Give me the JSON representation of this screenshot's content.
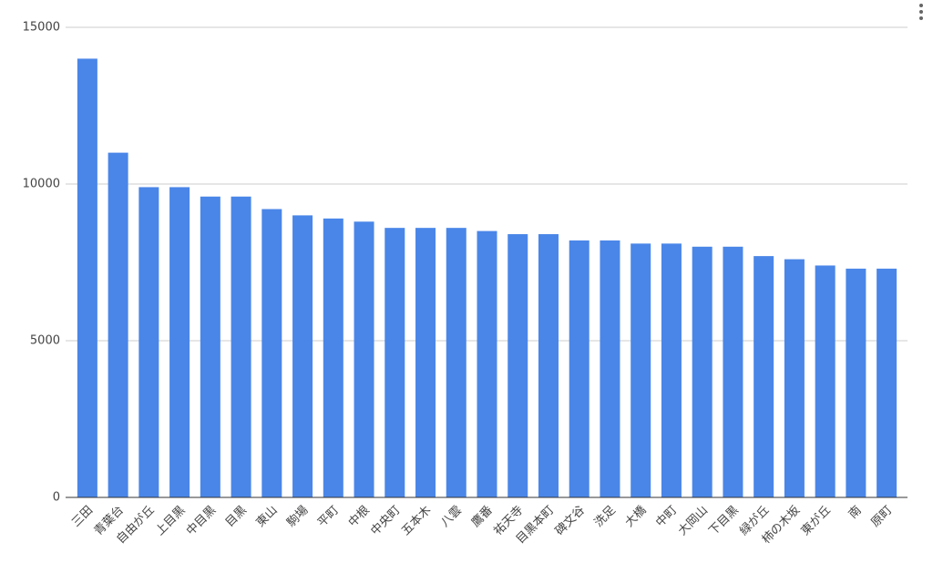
{
  "chart_data": {
    "type": "bar",
    "categories": [
      "三田",
      "青葉台",
      "自由が丘",
      "上目黒",
      "中目黒",
      "目黒",
      "東山",
      "駒場",
      "平町",
      "中根",
      "中央町",
      "五本木",
      "八雲",
      "鷹番",
      "祐天寺",
      "目黒本町",
      "碑文谷",
      "洗足",
      "大橋",
      "中町",
      "大岡山",
      "下目黒",
      "緑が丘",
      "柿の木坂",
      "東が丘",
      "南",
      "原町"
    ],
    "values": [
      14000,
      11000,
      9900,
      9900,
      9600,
      9600,
      9200,
      9000,
      8900,
      8800,
      8600,
      8600,
      8600,
      8500,
      8400,
      8400,
      8200,
      8200,
      8100,
      8100,
      8000,
      8000,
      7700,
      7600,
      7400,
      7300,
      7300
    ],
    "color": "#4a86e8",
    "ylim": [
      0,
      15000
    ],
    "yticks": [
      0,
      5000,
      10000,
      15000
    ],
    "grid": true
  }
}
